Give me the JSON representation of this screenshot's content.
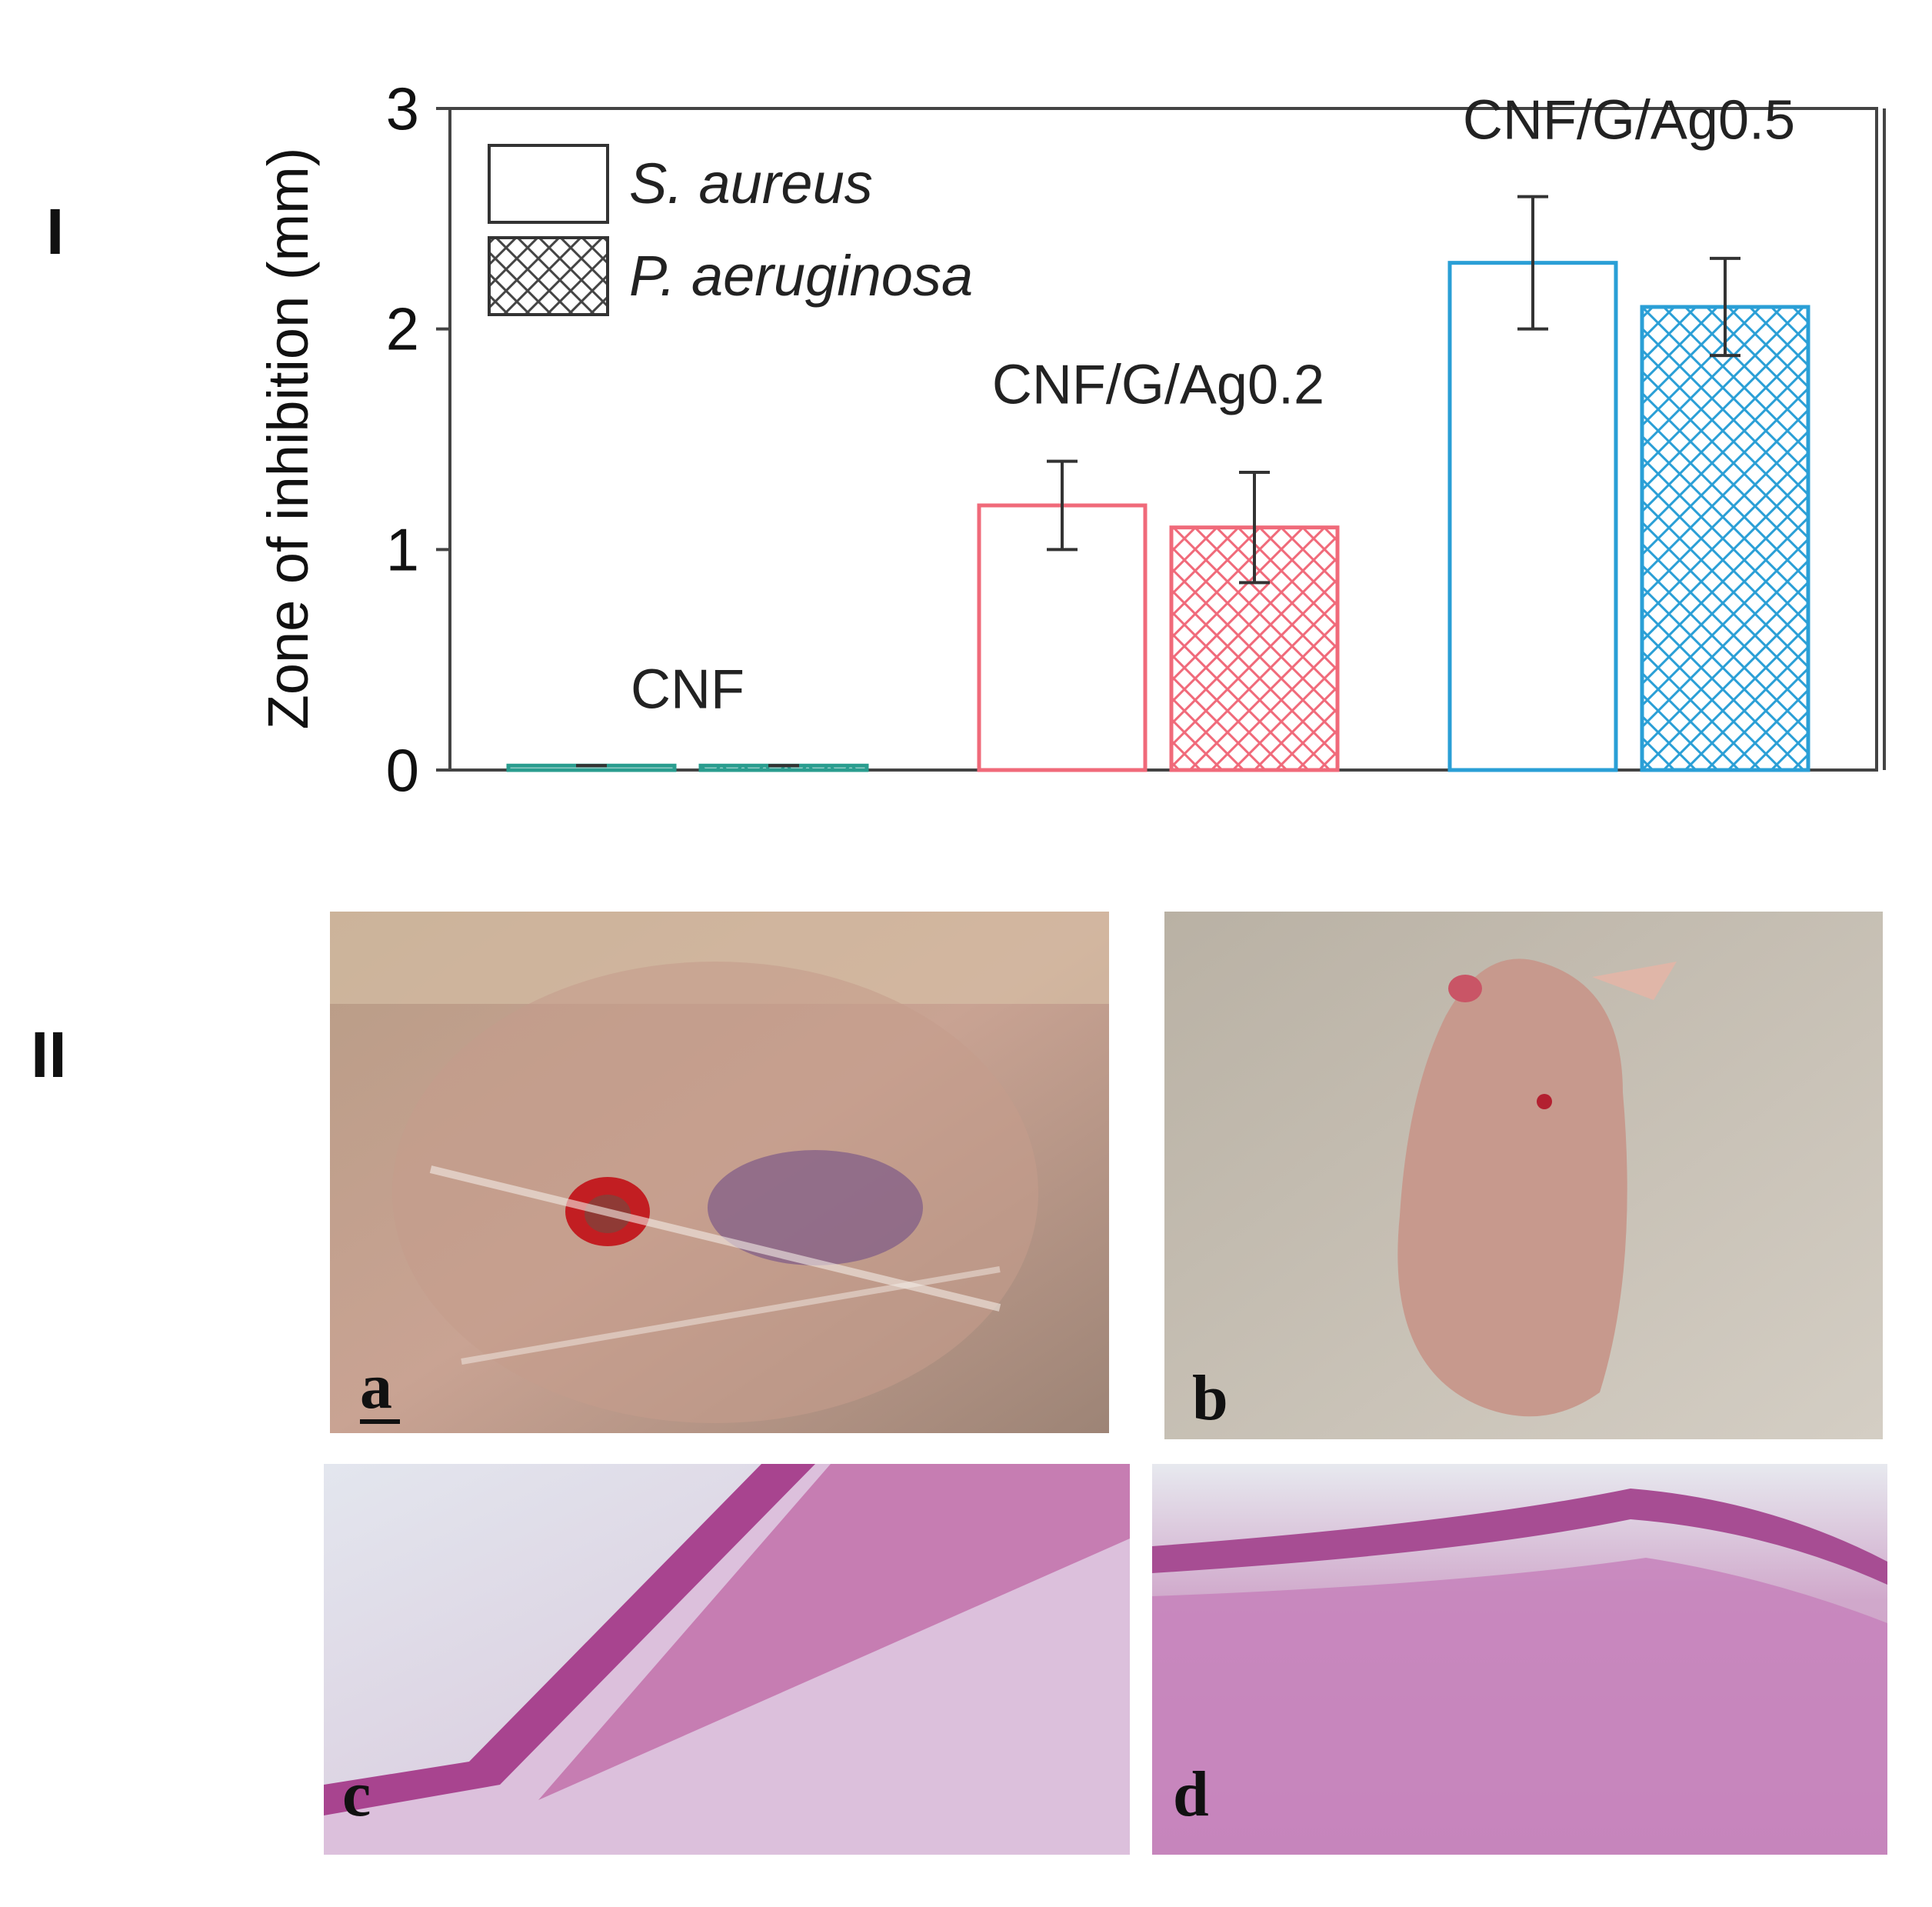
{
  "panel_labels": [
    "I",
    "II"
  ],
  "chart_data": {
    "type": "bar",
    "ylabel": "Zone of inhibition (mm)",
    "categories": [
      "CNF",
      "CNF/G/Ag0.2",
      "CNF/G/Ag0.5"
    ],
    "category_colors": [
      "#2a9d8f",
      "#f06a7a",
      "#2a9fd6"
    ],
    "series": [
      {
        "name": "S. aureus",
        "hatch": false,
        "values": [
          0.02,
          1.2,
          2.3
        ],
        "errors": [
          0,
          0.2,
          0.3
        ]
      },
      {
        "name": "P. aeruginosa",
        "hatch": true,
        "values": [
          0.02,
          1.1,
          2.1
        ],
        "errors": [
          0,
          0.25,
          0.22
        ]
      }
    ],
    "ylim": [
      0,
      3
    ],
    "yticks": [
      0,
      1,
      2,
      3
    ],
    "legend": "upper left"
  },
  "photos": [
    {
      "label": "a"
    },
    {
      "label": "b"
    },
    {
      "label": "c"
    },
    {
      "label": "d"
    }
  ]
}
